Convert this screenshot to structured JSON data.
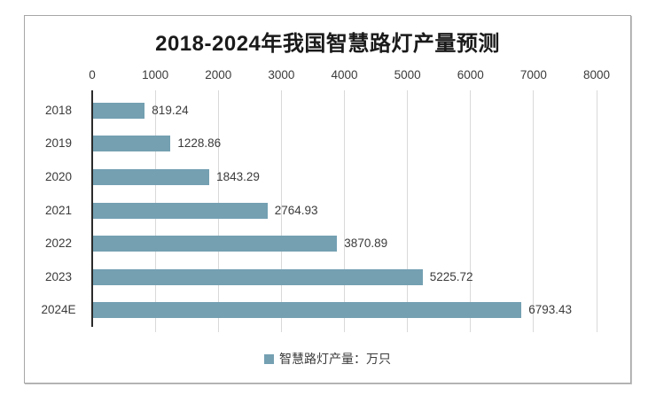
{
  "chart_data": {
    "type": "bar",
    "orientation": "horizontal",
    "title": "2018-2024年我国智慧路灯产量预测",
    "categories": [
      "2018",
      "2019",
      "2020",
      "2021",
      "2022",
      "2023",
      "2024E"
    ],
    "values": [
      819.24,
      1228.86,
      1843.29,
      2764.93,
      3870.89,
      5225.72,
      6793.43
    ],
    "value_labels": [
      "819.24",
      "1228.86",
      "1843.29",
      "2764.93",
      "3870.89",
      "5225.72",
      "6793.43"
    ],
    "x_ticks": [
      0,
      1000,
      2000,
      3000,
      4000,
      5000,
      6000,
      7000,
      8000
    ],
    "xlim": [
      0,
      8000
    ],
    "xlabel": "",
    "ylabel": "",
    "grid": "vertical",
    "axis_position": "top",
    "legend_position": "bottom",
    "legend": [
      {
        "label": "智慧路灯产量：万只",
        "marker": "square"
      }
    ],
    "colors": {
      "bar": "#74A0B2",
      "grid": "#D9D9D9",
      "axis": "#2B2B2B",
      "text": "#3B3B3B",
      "title": "#1A1A1A",
      "border": "#A6A6A6",
      "background": "#FFFFFF"
    }
  }
}
